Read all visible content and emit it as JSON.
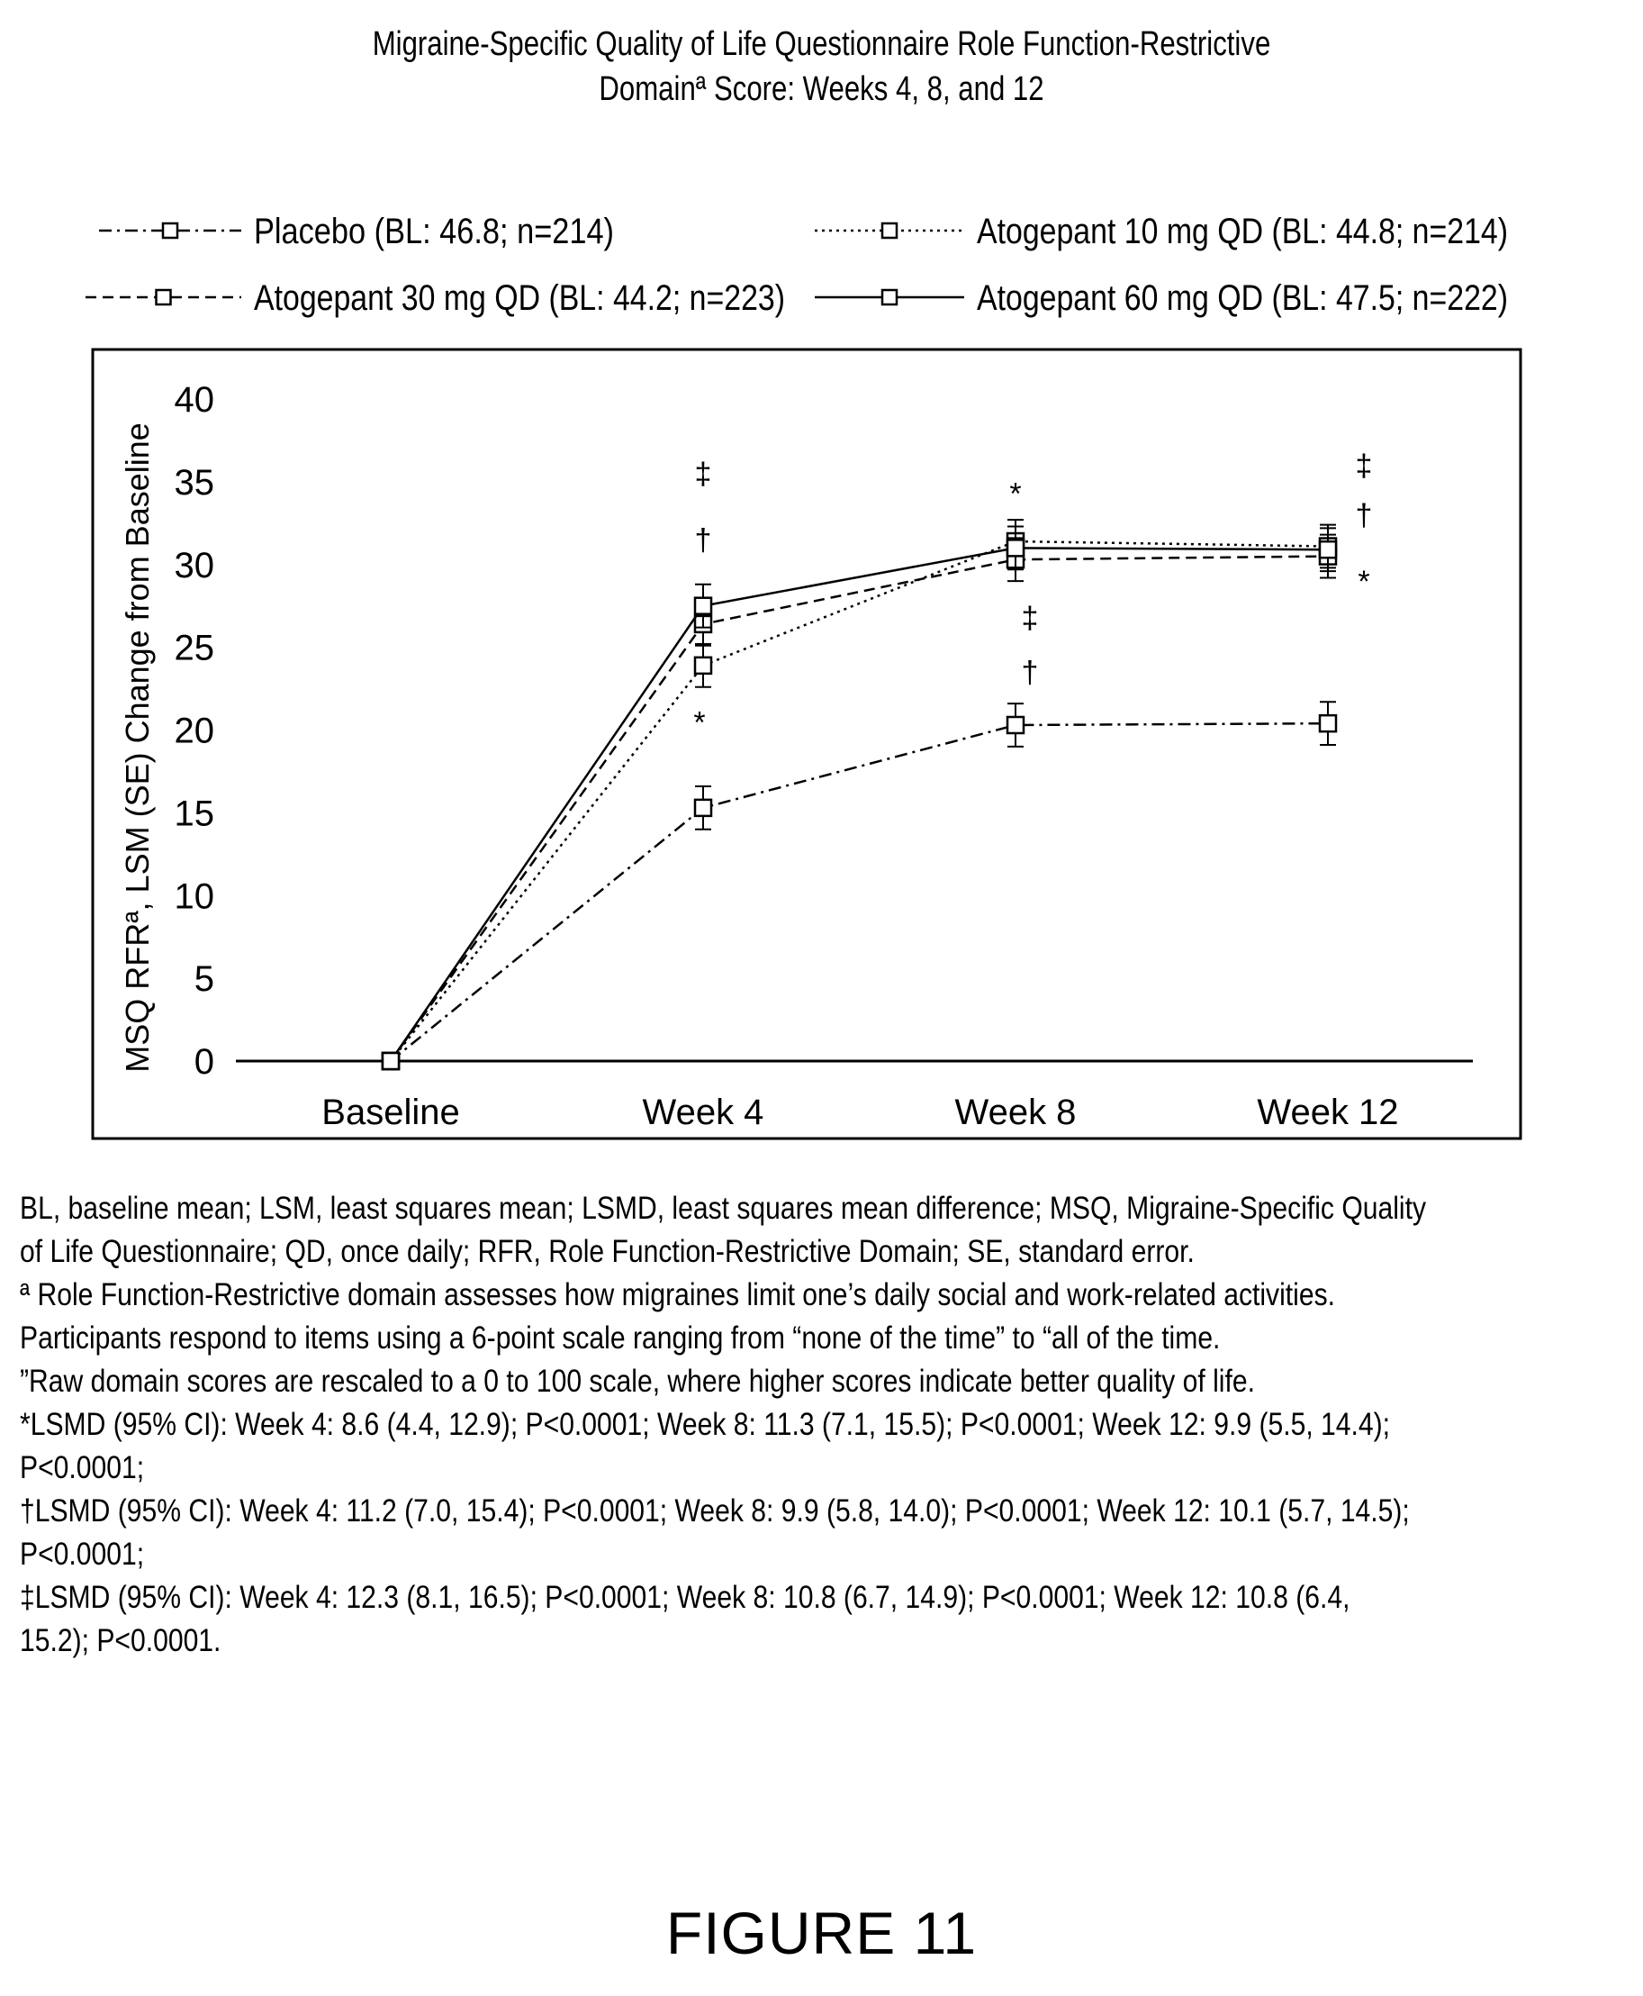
{
  "chart_data": {
    "type": "line",
    "title": "Migraine-Specific Quality of Life Questionnaire Role Function-Restrictive",
    "title_line2": "Domainª Score: Weeks 4, 8, and 12",
    "ylabel": "MSQ RFRª, LSM (SE) Change from Baseline",
    "xlabel": "",
    "categories": [
      "Baseline",
      "Week 4",
      "Week 8",
      "Week 12"
    ],
    "ylim": [
      0,
      40
    ],
    "yticks": [
      "0",
      "5",
      "10",
      "15",
      "20",
      "25",
      "30",
      "35",
      "40"
    ],
    "grid": false,
    "legend_position": "top",
    "series": [
      {
        "name": "Placebo (BL: 46.8; n=214)",
        "values": [
          0,
          15.3,
          20.3,
          20.4
        ],
        "se": [
          0,
          1.3,
          1.3,
          1.3
        ],
        "dash": "14,6,3,6"
      },
      {
        "name": "Atogepant 10 mg QD (BL: 44.8; n=214)",
        "values": [
          0,
          23.9,
          31.4,
          31.1
        ],
        "se": [
          0,
          1.3,
          1.3,
          1.3
        ],
        "dash": "3,5"
      },
      {
        "name": "Atogepant 30 mg QD (BL: 44.2; n=223)",
        "values": [
          0,
          26.4,
          30.3,
          30.5
        ],
        "se": [
          0,
          1.3,
          1.3,
          1.3
        ],
        "dash": "12,7"
      },
      {
        "name": "Atogepant 60 mg QD (BL: 47.5; n=222)",
        "values": [
          0,
          27.5,
          31.0,
          30.9
        ],
        "se": [
          0,
          1.3,
          1.3,
          1.3
        ],
        "dash": ""
      }
    ],
    "annotations": [
      {
        "category": "Week 4",
        "symbol": "‡",
        "y": 35.5
      },
      {
        "category": "Week 4",
        "symbol": "†",
        "y": 31.5
      },
      {
        "category": "Week 4",
        "symbol": "*",
        "y": 20.5
      },
      {
        "category": "Week 8",
        "symbol": "*",
        "y": 34.3
      },
      {
        "category": "Week 8",
        "symbol": "‡",
        "y": 26.8
      },
      {
        "category": "Week 8",
        "symbol": "†",
        "y": 23.5
      },
      {
        "category": "Week 12",
        "symbol": "‡",
        "y": 36.0
      },
      {
        "category": "Week 12",
        "symbol": "†",
        "y": 33.0
      },
      {
        "category": "Week 12",
        "symbol": "*",
        "y": 29.0
      }
    ]
  },
  "notes": {
    "line1": "BL, baseline mean; LSM, least squares mean; LSMD, least squares mean difference; MSQ, Migraine-Specific Quality",
    "line2": "of Life Questionnaire; QD, once daily; RFR, Role Function-Restrictive Domain; SE, standard error.",
    "line3": "ª Role Function-Restrictive domain assesses how migraines limit one’s daily social and work-related activities.",
    "line4": "Participants respond to items using a 6-point scale ranging from “none of the time” to “all of the time.",
    "line5": "”Raw domain scores are rescaled to a 0 to 100 scale, where higher scores indicate better quality of life.",
    "line6": "*LSMD (95% CI): Week 4: 8.6 (4.4, 12.9); P<0.0001; Week 8: 11.3 (7.1, 15.5); P<0.0001; Week 12: 9.9 (5.5, 14.4);",
    "line7": "P<0.0001;",
    "line8": "†LSMD (95% CI): Week 4: 11.2 (7.0, 15.4); P<0.0001; Week 8: 9.9 (5.8, 14.0); P<0.0001; Week 12: 10.1 (5.7, 14.5);",
    "line9": "P<0.0001;",
    "line10": "‡LSMD (95% CI): Week 4: 12.3 (8.1, 16.5); P<0.0001; Week 8: 10.8 (6.7, 14.9); P<0.0001; Week 12: 10.8 (6.4,",
    "line11": "15.2); P<0.0001."
  },
  "figure_label": "FIGURE 11"
}
